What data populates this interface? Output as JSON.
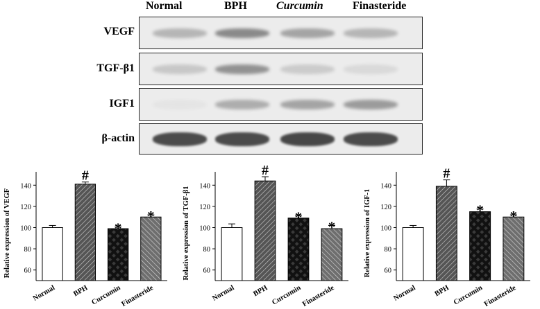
{
  "western_blot": {
    "lanes": [
      "Normal",
      "BPH",
      "Curcumin",
      "Finasteride"
    ],
    "rows": [
      {
        "label": "VEGF",
        "intensities": [
          0.3,
          0.55,
          0.4,
          0.3
        ]
      },
      {
        "label": "TGF-β1",
        "intensities": [
          0.2,
          0.5,
          0.18,
          0.1
        ]
      },
      {
        "label": "IGF1",
        "intensities": [
          0.04,
          0.35,
          0.4,
          0.45
        ]
      },
      {
        "label": "β-actin",
        "intensities": [
          0.9,
          0.9,
          0.92,
          0.9
        ]
      }
    ]
  },
  "chart_data": [
    {
      "type": "bar",
      "categories": [
        "Normal",
        "BPH",
        "Curcumin",
        "Finasteride"
      ],
      "values": [
        100,
        141,
        99,
        110
      ],
      "errors": [
        2,
        2,
        1.5,
        2
      ],
      "annotations": [
        "",
        "#",
        "*",
        "*"
      ],
      "ylabel": "Relative expression of VEGF",
      "ylim": [
        50,
        150
      ],
      "yticks": [
        60,
        80,
        100,
        120,
        140
      ],
      "grid": false
    },
    {
      "type": "bar",
      "categories": [
        "Normal",
        "BPH",
        "Curcumin",
        "Finasteride"
      ],
      "values": [
        100,
        144,
        109,
        99
      ],
      "errors": [
        3.5,
        4,
        2,
        3
      ],
      "annotations": [
        "",
        "#",
        "*",
        "*"
      ],
      "ylabel": "Relative expression of TGF-β1",
      "ylim": [
        50,
        150
      ],
      "yticks": [
        60,
        80,
        100,
        120,
        140
      ],
      "grid": false
    },
    {
      "type": "bar",
      "categories": [
        "Normal",
        "BPH",
        "Curcumin",
        "Finasteride"
      ],
      "values": [
        100,
        139,
        115,
        110
      ],
      "errors": [
        2,
        6,
        2.5,
        2
      ],
      "annotations": [
        "",
        "#",
        "*",
        "*"
      ],
      "ylabel": "Relative expression of IGF-1",
      "ylim": [
        50,
        150
      ],
      "yticks": [
        60,
        80,
        100,
        120,
        140
      ],
      "grid": false
    }
  ],
  "colors": {
    "normal_bar": "#ffffff",
    "bph_bar": "#555555",
    "curcumin_bar": "#111111",
    "finasteride_bar": "#6e6e6e",
    "band": "#3a3a3a",
    "membrane": "#ececec"
  }
}
